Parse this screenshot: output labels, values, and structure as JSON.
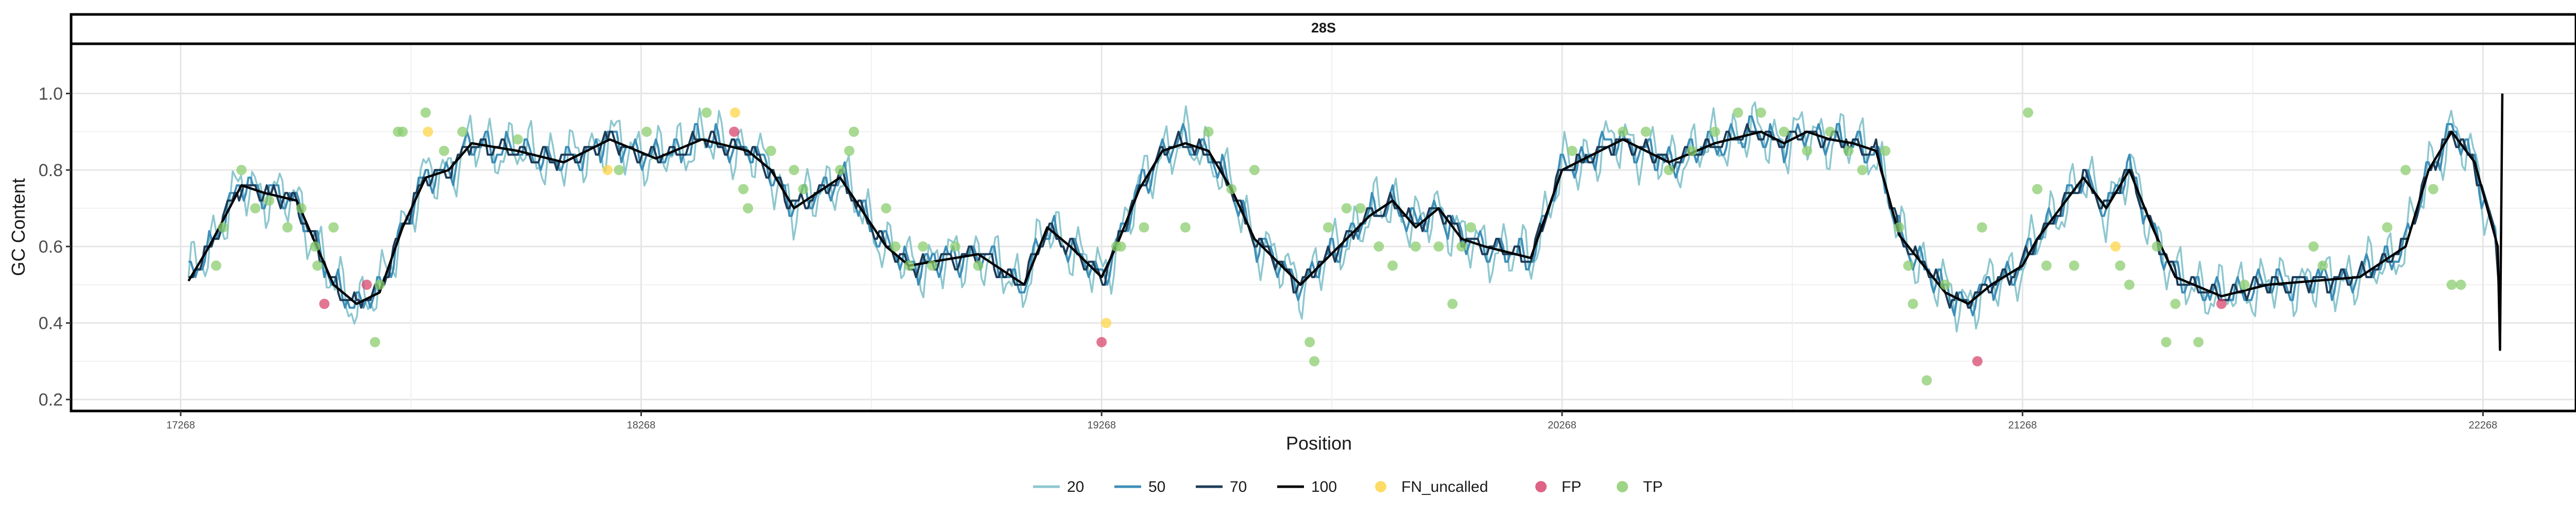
{
  "chart_data": {
    "type": "line",
    "facet_label": "28S",
    "xlabel": "Position",
    "ylabel": "GC Content",
    "xlim": [
      17030,
      22470
    ],
    "ylim": [
      0.17,
      1.13
    ],
    "x_ticks": [
      17268,
      18268,
      19268,
      20268,
      21268,
      22268
    ],
    "x_tick_labels": [
      "17268",
      "18268",
      "19268",
      "20268",
      "21268",
      "22268"
    ],
    "y_ticks": [
      0.2,
      0.4,
      0.6,
      0.8,
      1.0
    ],
    "y_tick_labels": [
      "0.2",
      "0.4",
      "0.6",
      "0.8",
      "1.0"
    ],
    "grid": true,
    "legend_position": "bottom",
    "colors": {
      "w20": "#8ec7cf",
      "w50": "#3d8fb8",
      "w70": "#1d3c57",
      "w100": "#000000",
      "FN_uncalled": "#fdd64a",
      "FP": "#d8486e",
      "TP": "#8ccd70"
    },
    "legend": [
      {
        "label": "20",
        "kind": "line",
        "color_key": "w20"
      },
      {
        "label": "50",
        "kind": "line",
        "color_key": "w50"
      },
      {
        "label": "70",
        "kind": "line",
        "color_key": "w70"
      },
      {
        "label": "100",
        "kind": "line",
        "color_key": "w100"
      },
      {
        "label": "FN_uncalled",
        "kind": "point",
        "color_key": "FN_uncalled"
      },
      {
        "label": "FP",
        "kind": "point",
        "color_key": "FP"
      },
      {
        "label": "TP",
        "kind": "point",
        "color_key": "TP"
      }
    ],
    "profile_anchors": {
      "x": [
        17285,
        17330,
        17400,
        17450,
        17520,
        17600,
        17650,
        17700,
        17750,
        17800,
        17850,
        17900,
        18000,
        18100,
        18200,
        18300,
        18400,
        18500,
        18550,
        18600,
        18700,
        18800,
        18850,
        18900,
        19000,
        19100,
        19150,
        19200,
        19268,
        19300,
        19350,
        19400,
        19450,
        19500,
        19550,
        19600,
        19700,
        19800,
        19850,
        19900,
        19950,
        20000,
        20050,
        20100,
        20200,
        20268,
        20400,
        20500,
        20600,
        20700,
        20750,
        20800,
        20850,
        20900,
        20950,
        21000,
        21100,
        21150,
        21200,
        21268,
        21300,
        21400,
        21450,
        21500,
        21550,
        21600,
        21700,
        21800,
        21900,
        22000,
        22100,
        22150,
        22200,
        22250,
        22300,
        22310
      ],
      "y": [
        0.51,
        0.6,
        0.76,
        0.74,
        0.72,
        0.5,
        0.45,
        0.48,
        0.65,
        0.78,
        0.8,
        0.87,
        0.85,
        0.82,
        0.88,
        0.83,
        0.88,
        0.85,
        0.8,
        0.7,
        0.78,
        0.6,
        0.55,
        0.56,
        0.58,
        0.5,
        0.65,
        0.6,
        0.52,
        0.6,
        0.75,
        0.85,
        0.87,
        0.85,
        0.75,
        0.62,
        0.5,
        0.62,
        0.68,
        0.72,
        0.65,
        0.7,
        0.62,
        0.6,
        0.57,
        0.8,
        0.88,
        0.82,
        0.87,
        0.9,
        0.87,
        0.9,
        0.88,
        0.87,
        0.85,
        0.63,
        0.48,
        0.45,
        0.5,
        0.55,
        0.62,
        0.78,
        0.7,
        0.8,
        0.65,
        0.52,
        0.47,
        0.5,
        0.51,
        0.52,
        0.6,
        0.8,
        0.9,
        0.82,
        0.6,
        0.55
      ],
      "end_spike_y": [
        0.33,
        1.0
      ]
    },
    "series": [
      {
        "name": "20",
        "window": 20,
        "noise_amplitude": 0.1
      },
      {
        "name": "50",
        "window": 50,
        "noise_amplitude": 0.05
      },
      {
        "name": "70",
        "window": 70,
        "noise_amplitude": 0.03
      },
      {
        "name": "100",
        "window": 100,
        "noise_amplitude": 0.0
      }
    ],
    "points": [
      {
        "category": "TP",
        "x": 17345,
        "y": 0.55
      },
      {
        "category": "TP",
        "x": 17360,
        "y": 0.65
      },
      {
        "category": "TP",
        "x": 17400,
        "y": 0.8
      },
      {
        "category": "TP",
        "x": 17430,
        "y": 0.7
      },
      {
        "category": "TP",
        "x": 17460,
        "y": 0.72
      },
      {
        "category": "TP",
        "x": 17500,
        "y": 0.65
      },
      {
        "category": "TP",
        "x": 17530,
        "y": 0.7
      },
      {
        "category": "TP",
        "x": 17560,
        "y": 0.6
      },
      {
        "category": "TP",
        "x": 17565,
        "y": 0.55
      },
      {
        "category": "TP",
        "x": 17600,
        "y": 0.65
      },
      {
        "category": "FP",
        "x": 17580,
        "y": 0.45
      },
      {
        "category": "FP",
        "x": 17672,
        "y": 0.5
      },
      {
        "category": "TP",
        "x": 17690,
        "y": 0.35
      },
      {
        "category": "TP",
        "x": 17700,
        "y": 0.5
      },
      {
        "category": "TP",
        "x": 17740,
        "y": 0.9
      },
      {
        "category": "TP",
        "x": 17750,
        "y": 0.9
      },
      {
        "category": "TP",
        "x": 17800,
        "y": 0.95
      },
      {
        "category": "FN_uncalled",
        "x": 17805,
        "y": 0.9
      },
      {
        "category": "TP",
        "x": 17840,
        "y": 0.85
      },
      {
        "category": "TP",
        "x": 17880,
        "y": 0.9
      },
      {
        "category": "TP",
        "x": 18000,
        "y": 0.88
      },
      {
        "category": "FN_uncalled",
        "x": 18195,
        "y": 0.8
      },
      {
        "category": "TP",
        "x": 18220,
        "y": 0.8
      },
      {
        "category": "TP",
        "x": 18280,
        "y": 0.9
      },
      {
        "category": "TP",
        "x": 18410,
        "y": 0.95
      },
      {
        "category": "FN_uncalled",
        "x": 18472,
        "y": 0.95
      },
      {
        "category": "FP",
        "x": 18470,
        "y": 0.9
      },
      {
        "category": "TP",
        "x": 18490,
        "y": 0.75
      },
      {
        "category": "TP",
        "x": 18500,
        "y": 0.7
      },
      {
        "category": "TP",
        "x": 18550,
        "y": 0.85
      },
      {
        "category": "TP",
        "x": 18600,
        "y": 0.8
      },
      {
        "category": "TP",
        "x": 18620,
        "y": 0.75
      },
      {
        "category": "TP",
        "x": 18700,
        "y": 0.8
      },
      {
        "category": "TP",
        "x": 18720,
        "y": 0.85
      },
      {
        "category": "TP",
        "x": 18730,
        "y": 0.9
      },
      {
        "category": "TP",
        "x": 18800,
        "y": 0.7
      },
      {
        "category": "TP",
        "x": 18820,
        "y": 0.6
      },
      {
        "category": "TP",
        "x": 18850,
        "y": 0.55
      },
      {
        "category": "TP",
        "x": 18880,
        "y": 0.6
      },
      {
        "category": "TP",
        "x": 18900,
        "y": 0.55
      },
      {
        "category": "TP",
        "x": 18950,
        "y": 0.6
      },
      {
        "category": "TP",
        "x": 19000,
        "y": 0.55
      },
      {
        "category": "FN_uncalled",
        "x": 19278,
        "y": 0.4
      },
      {
        "category": "FP",
        "x": 19268,
        "y": 0.35
      },
      {
        "category": "TP",
        "x": 19300,
        "y": 0.6
      },
      {
        "category": "TP",
        "x": 19310,
        "y": 0.6
      },
      {
        "category": "TP",
        "x": 19360,
        "y": 0.65
      },
      {
        "category": "TP",
        "x": 19450,
        "y": 0.65
      },
      {
        "category": "TP",
        "x": 19500,
        "y": 0.9
      },
      {
        "category": "TP",
        "x": 19550,
        "y": 0.75
      },
      {
        "category": "TP",
        "x": 19600,
        "y": 0.8
      },
      {
        "category": "TP",
        "x": 19720,
        "y": 0.35
      },
      {
        "category": "TP",
        "x": 19730,
        "y": 0.3
      },
      {
        "category": "TP",
        "x": 19760,
        "y": 0.65
      },
      {
        "category": "TP",
        "x": 19800,
        "y": 0.7
      },
      {
        "category": "TP",
        "x": 19830,
        "y": 0.7
      },
      {
        "category": "TP",
        "x": 19870,
        "y": 0.6
      },
      {
        "category": "TP",
        "x": 19900,
        "y": 0.55
      },
      {
        "category": "TP",
        "x": 19950,
        "y": 0.6
      },
      {
        "category": "TP",
        "x": 20000,
        "y": 0.6
      },
      {
        "category": "TP",
        "x": 20030,
        "y": 0.45
      },
      {
        "category": "TP",
        "x": 20050,
        "y": 0.6
      },
      {
        "category": "TP",
        "x": 20070,
        "y": 0.65
      },
      {
        "category": "TP",
        "x": 20290,
        "y": 0.85
      },
      {
        "category": "TP",
        "x": 20400,
        "y": 0.9
      },
      {
        "category": "TP",
        "x": 20450,
        "y": 0.9
      },
      {
        "category": "TP",
        "x": 20500,
        "y": 0.8
      },
      {
        "category": "TP",
        "x": 20550,
        "y": 0.85
      },
      {
        "category": "TP",
        "x": 20600,
        "y": 0.9
      },
      {
        "category": "TP",
        "x": 20650,
        "y": 0.95
      },
      {
        "category": "TP",
        "x": 20700,
        "y": 0.95
      },
      {
        "category": "TP",
        "x": 20750,
        "y": 0.9
      },
      {
        "category": "TP",
        "x": 20800,
        "y": 0.85
      },
      {
        "category": "TP",
        "x": 20850,
        "y": 0.9
      },
      {
        "category": "TP",
        "x": 20890,
        "y": 0.85
      },
      {
        "category": "TP",
        "x": 20920,
        "y": 0.8
      },
      {
        "category": "TP",
        "x": 20970,
        "y": 0.85
      },
      {
        "category": "TP",
        "x": 21000,
        "y": 0.65
      },
      {
        "category": "TP",
        "x": 21020,
        "y": 0.55
      },
      {
        "category": "TP",
        "x": 21030,
        "y": 0.45
      },
      {
        "category": "TP",
        "x": 21060,
        "y": 0.25
      },
      {
        "category": "TP",
        "x": 21100,
        "y": 0.5
      },
      {
        "category": "FP",
        "x": 21170,
        "y": 0.3
      },
      {
        "category": "TP",
        "x": 21180,
        "y": 0.65
      },
      {
        "category": "TP",
        "x": 21280,
        "y": 0.95
      },
      {
        "category": "TP",
        "x": 21300,
        "y": 0.75
      },
      {
        "category": "TP",
        "x": 21320,
        "y": 0.55
      },
      {
        "category": "TP",
        "x": 21380,
        "y": 0.55
      },
      {
        "category": "FN_uncalled",
        "x": 21470,
        "y": 0.6
      },
      {
        "category": "TP",
        "x": 21480,
        "y": 0.55
      },
      {
        "category": "TP",
        "x": 21500,
        "y": 0.5
      },
      {
        "category": "TP",
        "x": 21560,
        "y": 0.6
      },
      {
        "category": "TP",
        "x": 21580,
        "y": 0.35
      },
      {
        "category": "TP",
        "x": 21600,
        "y": 0.45
      },
      {
        "category": "TP",
        "x": 21650,
        "y": 0.35
      },
      {
        "category": "FP",
        "x": 21700,
        "y": 0.45
      },
      {
        "category": "TP",
        "x": 21750,
        "y": 0.5
      },
      {
        "category": "TP",
        "x": 21900,
        "y": 0.6
      },
      {
        "category": "TP",
        "x": 21920,
        "y": 0.55
      },
      {
        "category": "TP",
        "x": 22060,
        "y": 0.65
      },
      {
        "category": "TP",
        "x": 22100,
        "y": 0.8
      },
      {
        "category": "TP",
        "x": 22160,
        "y": 0.75
      },
      {
        "category": "TP",
        "x": 22200,
        "y": 0.5
      },
      {
        "category": "TP",
        "x": 22220,
        "y": 0.5
      }
    ]
  }
}
